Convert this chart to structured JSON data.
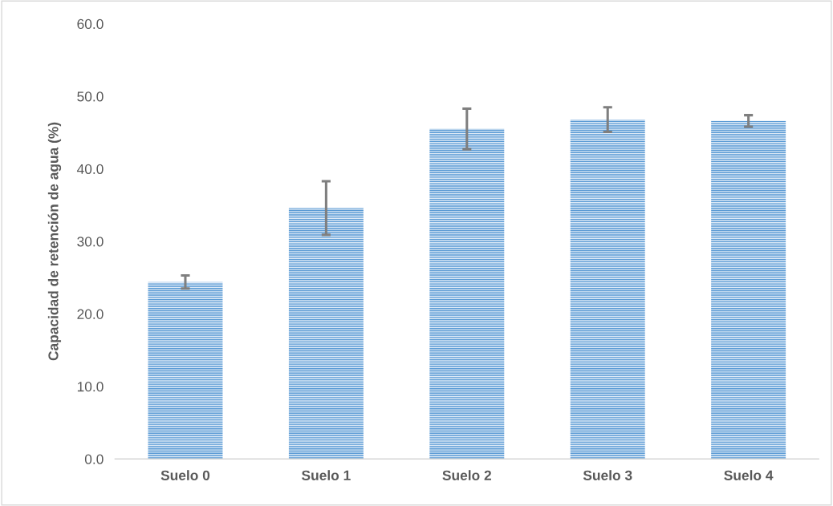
{
  "chart_data": {
    "type": "bar",
    "ylabel": "Capacidad de retención de agua (%)",
    "categories": [
      "Suelo 0",
      "Suelo 1",
      "Suelo 2",
      "Suelo 3",
      "Suelo 4"
    ],
    "values": [
      24.4,
      34.6,
      45.5,
      46.8,
      46.6
    ],
    "errors": [
      0.9,
      3.7,
      2.8,
      1.7,
      0.8
    ],
    "color": "#5b9bd5",
    "ylim": [
      0,
      60
    ],
    "yticks": [
      {
        "value": 0,
        "label": "0.0"
      },
      {
        "value": 10,
        "label": "10.0"
      },
      {
        "value": 20,
        "label": "20.0"
      },
      {
        "value": 30,
        "label": "30.0"
      },
      {
        "value": 40,
        "label": "40.0"
      },
      {
        "value": 50,
        "label": "50.0"
      },
      {
        "value": 60,
        "label": "60.0"
      }
    ],
    "grid": false,
    "legend": false
  }
}
